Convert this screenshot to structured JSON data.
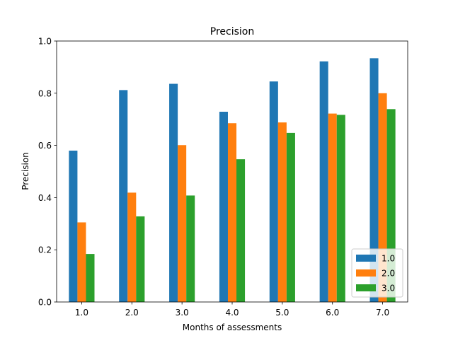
{
  "chart_data": {
    "type": "bar",
    "title": "Precision",
    "xlabel": "Months of assessments",
    "ylabel": "Precision",
    "categories": [
      "1.0",
      "2.0",
      "3.0",
      "4.0",
      "5.0",
      "6.0",
      "7.0"
    ],
    "ylim": [
      0,
      1.0
    ],
    "yticks": [
      "0.0",
      "0.2",
      "0.4",
      "0.6",
      "0.8",
      "1.0"
    ],
    "grid": false,
    "legend_position": "bottom-right",
    "series": [
      {
        "name": "1.0",
        "color": "#1f77b4",
        "values": [
          0.58,
          0.812,
          0.836,
          0.729,
          0.845,
          0.922,
          0.934
        ]
      },
      {
        "name": "2.0",
        "color": "#ff7f0e",
        "values": [
          0.305,
          0.419,
          0.601,
          0.685,
          0.688,
          0.722,
          0.8
        ]
      },
      {
        "name": "3.0",
        "color": "#2ca02c",
        "values": [
          0.184,
          0.328,
          0.408,
          0.547,
          0.648,
          0.717,
          0.739
        ]
      }
    ]
  }
}
